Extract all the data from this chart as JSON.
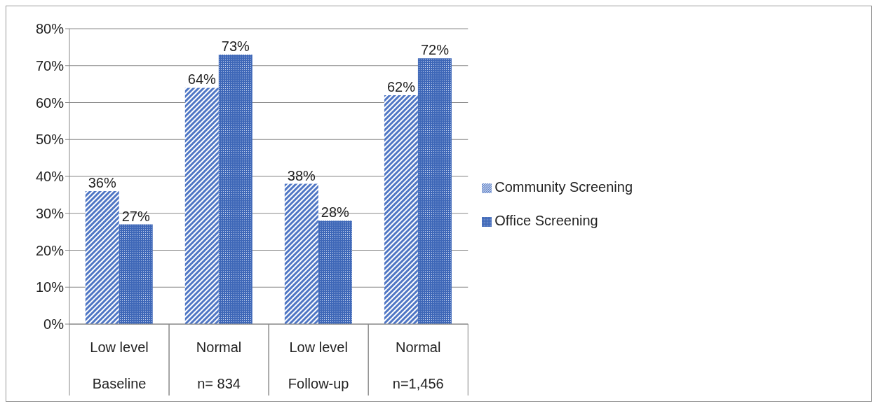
{
  "chart_data": {
    "type": "bar",
    "categories": [
      "Low level\nBaseline",
      "Normal\nn= 834",
      "Low level\nFollow-up",
      "Normal\nn=1,456"
    ],
    "series": [
      {
        "name": "Community Screening",
        "color": "#4f76c4",
        "values": [
          36,
          64,
          38,
          62
        ],
        "value_labels": [
          "36%",
          "64%",
          "38%",
          "62%"
        ]
      },
      {
        "name": "Office Screening",
        "color": "#3f68b8",
        "values": [
          27,
          73,
          28,
          72
        ],
        "value_labels": [
          "27%",
          "73%",
          "28%",
          "72%"
        ]
      }
    ],
    "ylim": [
      0,
      80
    ],
    "yticks": [
      {
        "value": 0,
        "label": "0%"
      },
      {
        "value": 10,
        "label": "10%"
      },
      {
        "value": 20,
        "label": "20%"
      },
      {
        "value": 30,
        "label": "30%"
      },
      {
        "value": 40,
        "label": "40%"
      },
      {
        "value": 50,
        "label": "50%"
      },
      {
        "value": 60,
        "label": "60%"
      },
      {
        "value": 70,
        "label": "70%"
      },
      {
        "value": 80,
        "label": "80%"
      }
    ],
    "grid": "y",
    "legend": "right"
  }
}
